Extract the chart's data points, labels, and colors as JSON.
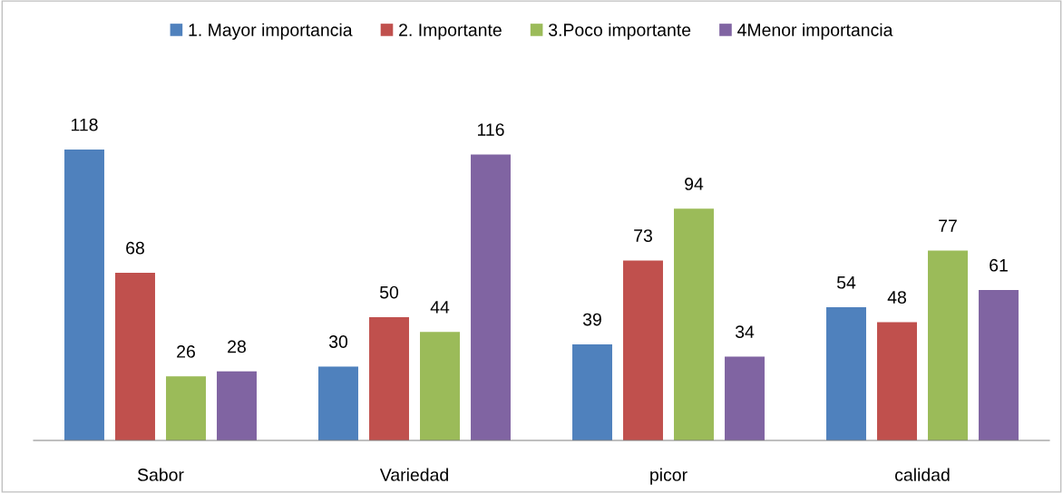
{
  "chart_data": {
    "type": "bar",
    "categories": [
      "Sabor",
      "Variedad",
      "picor",
      "calidad"
    ],
    "series": [
      {
        "name": "1. Mayor importancia",
        "color": "#4f81bd",
        "values": [
          118,
          30,
          39,
          54
        ]
      },
      {
        "name": "2. Importante",
        "color": "#c0504d",
        "values": [
          68,
          50,
          73,
          48
        ]
      },
      {
        "name": "3.Poco importante",
        "color": "#9bbb59",
        "values": [
          26,
          44,
          94,
          77
        ]
      },
      {
        "name": "4Menor importancia",
        "color": "#8064a2",
        "values": [
          28,
          116,
          34,
          61
        ]
      }
    ],
    "data_labels": true,
    "legend": "top",
    "grid": false
  }
}
